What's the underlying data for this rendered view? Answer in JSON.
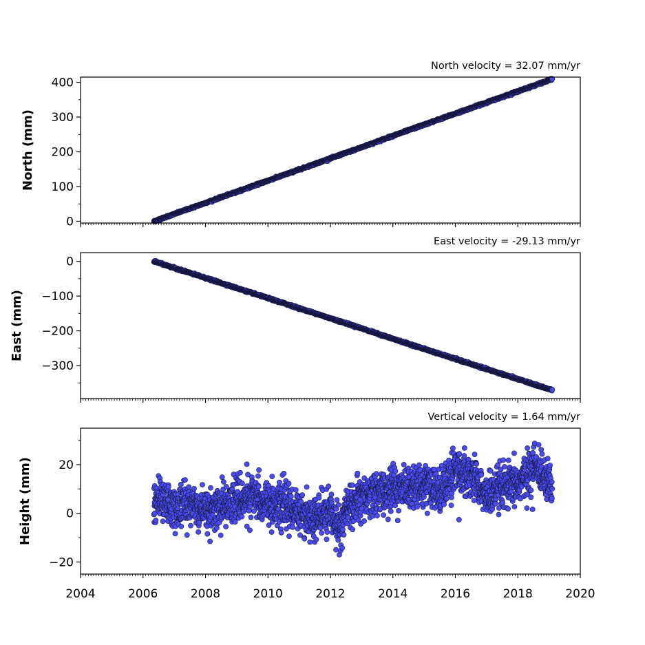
{
  "chart_data": [
    {
      "type": "scatter",
      "title": "North velocity = 32.07 mm/yr",
      "xlabel": "",
      "ylabel": "North (mm)",
      "xlim": [
        2004,
        2020
      ],
      "ylim": [
        -5,
        415
      ],
      "yticks": [
        0,
        100,
        200,
        300,
        400
      ],
      "yticklabels": [
        "0",
        "100",
        "200",
        "300",
        "400"
      ],
      "grid": false,
      "series": [
        {
          "x": [
            2006.35,
            2007.0,
            2008.0,
            2009.0,
            2010.0,
            2011.0,
            2012.0,
            2013.0,
            2014.0,
            2015.0,
            2016.0,
            2017.0,
            2018.0,
            2019.0,
            2019.1
          ],
          "values": [
            0,
            21,
            53,
            85,
            117,
            149,
            181,
            213,
            246,
            278,
            310,
            342,
            374,
            406,
            409
          ],
          "color": "#4b4bf5"
        }
      ]
    },
    {
      "type": "scatter",
      "title": "East velocity = -29.13 mm/yr",
      "xlabel": "",
      "ylabel": "East (mm)",
      "xlim": [
        2004,
        2020
      ],
      "ylim": [
        -395,
        25
      ],
      "yticks": [
        0,
        -100,
        -200,
        -300
      ],
      "yticklabels": [
        "0",
        "−100",
        "−200",
        "−300"
      ],
      "grid": false,
      "series": [
        {
          "x": [
            2006.35,
            2007.0,
            2008.0,
            2009.0,
            2010.0,
            2011.0,
            2012.0,
            2013.0,
            2014.0,
            2015.0,
            2016.0,
            2017.0,
            2018.0,
            2019.0,
            2019.1
          ],
          "values": [
            0,
            -19,
            -48,
            -77,
            -106,
            -135,
            -164,
            -193,
            -223,
            -252,
            -281,
            -310,
            -339,
            -368,
            -371
          ],
          "color": "#4b4bf5"
        }
      ]
    },
    {
      "type": "scatter",
      "title": "Vertical velocity = 1.64 mm/yr",
      "xlabel": "",
      "ylabel": "Height (mm)",
      "xlim": [
        2004,
        2020
      ],
      "ylim": [
        -25,
        35
      ],
      "yticks": [
        -20,
        0,
        20
      ],
      "yticklabels": [
        "−20",
        "0",
        "20"
      ],
      "xticks": [
        2004,
        2006,
        2008,
        2010,
        2012,
        2014,
        2016,
        2018,
        2020
      ],
      "xticklabels": [
        "2004",
        "2006",
        "2008",
        "2010",
        "2012",
        "2014",
        "2016",
        "2018",
        "2020"
      ],
      "grid": false,
      "series": [
        {
          "x": [
            2006.35,
            2006.5,
            2007.0,
            2007.5,
            2008.0,
            2008.5,
            2009.0,
            2009.5,
            2010.0,
            2010.5,
            2011.0,
            2011.5,
            2012.0,
            2012.3,
            2012.5,
            2013.0,
            2013.5,
            2014.0,
            2014.5,
            2015.0,
            2015.5,
            2016.0,
            2016.5,
            2017.0,
            2017.5,
            2018.0,
            2018.5,
            2019.0,
            2019.1
          ],
          "values": [
            3,
            6,
            2,
            4,
            1,
            3,
            5,
            7,
            4,
            3,
            1,
            -3,
            1,
            -7,
            2,
            6,
            8,
            10,
            11,
            12,
            9,
            18,
            16,
            7,
            10,
            12,
            19,
            15,
            8
          ],
          "color": "#4b4bf5"
        }
      ]
    }
  ]
}
